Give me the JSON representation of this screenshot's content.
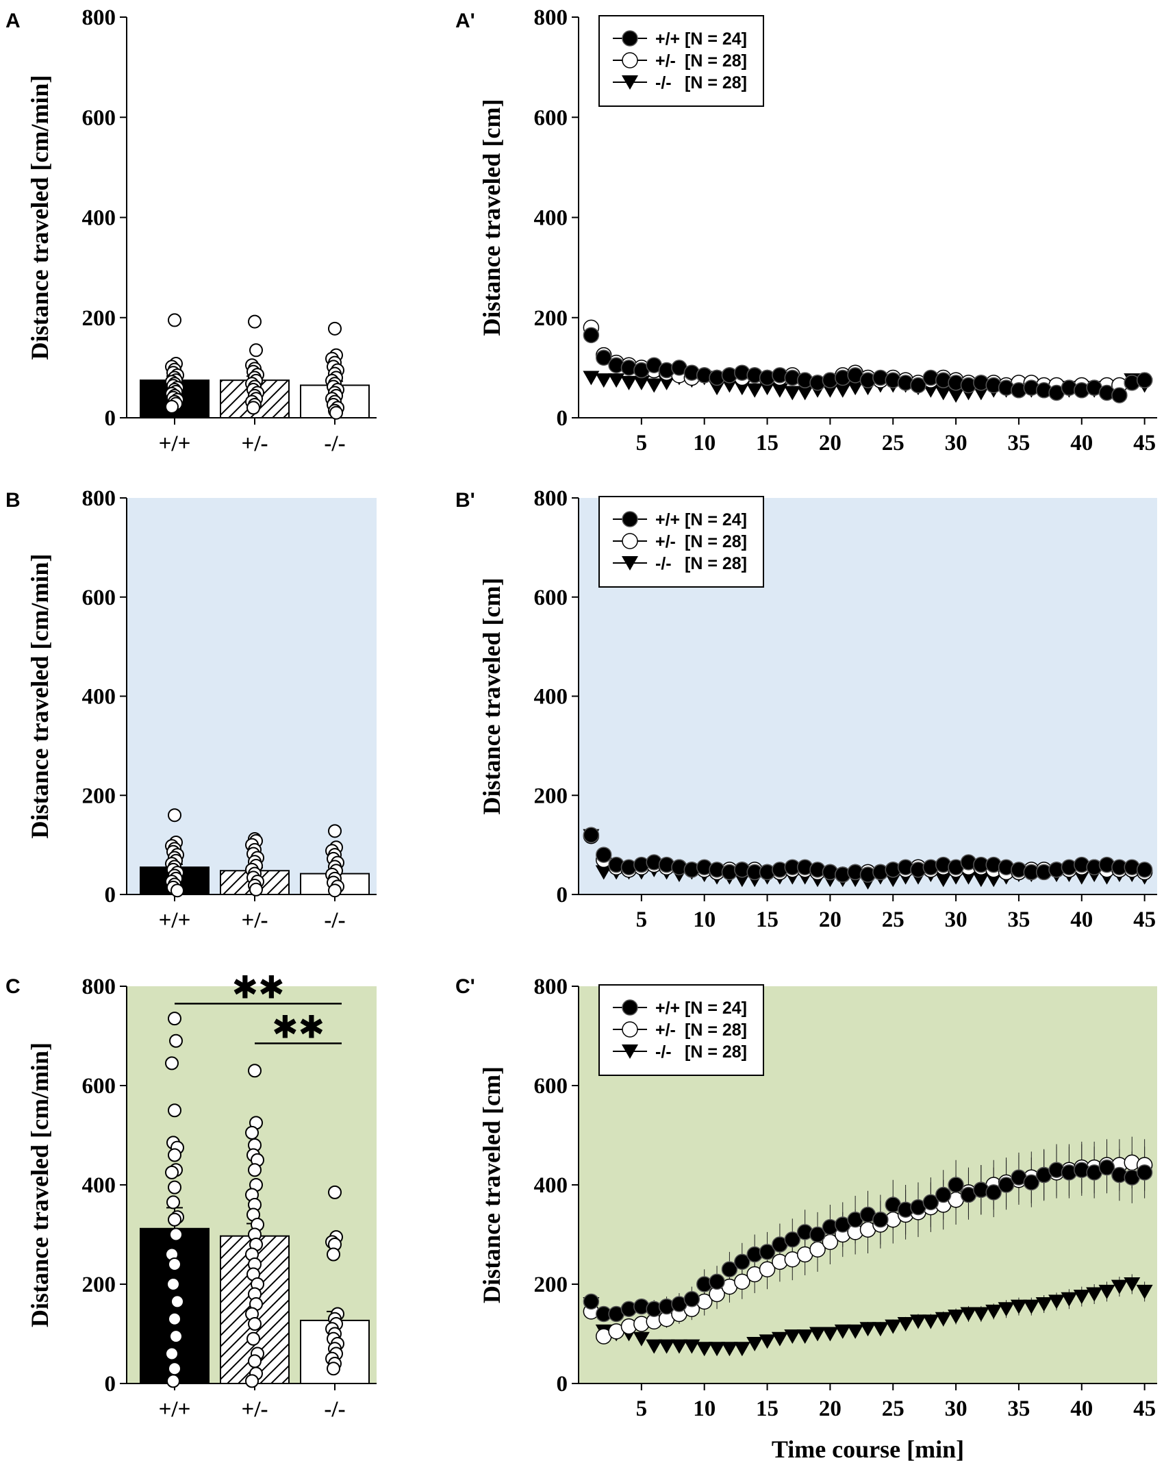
{
  "colors": {
    "bg_A": "#ffffff",
    "bg_B": "#dde9f5",
    "bg_C": "#d6e2bc",
    "ink": "#000000"
  },
  "chart_data": [
    {
      "panel": "A",
      "type": "bar",
      "title": "",
      "xlabel": "",
      "ylabel": "Distance traveled [cm/min]",
      "ylim": [
        0,
        800
      ],
      "yticks": [
        "0",
        "200",
        "400",
        "600",
        "800"
      ],
      "background": "bg_A",
      "categories": [
        "+/+",
        "+/-",
        "-/-"
      ],
      "fills": [
        "black",
        "hatch",
        "white"
      ],
      "values": [
        75,
        75,
        65
      ],
      "errors": [
        8,
        8,
        8
      ],
      "points": [
        [
          195,
          108,
          102,
          96,
          90,
          85,
          80,
          75,
          72,
          68,
          64,
          60,
          56,
          52,
          48,
          44,
          40,
          36,
          32,
          28,
          22
        ],
        [
          192,
          135,
          105,
          98,
          92,
          86,
          80,
          74,
          68,
          62,
          56,
          50,
          44,
          38,
          32,
          26,
          20
        ],
        [
          178,
          125,
          118,
          110,
          102,
          95,
          88,
          80,
          74,
          68,
          62,
          56,
          50,
          44,
          38,
          32,
          26,
          20,
          14,
          10
        ]
      ],
      "significance": []
    },
    {
      "panel": "A'",
      "type": "line",
      "title": "",
      "xlabel": "",
      "ylabel": "Distance traveled [cm]",
      "xlim": [
        0,
        46
      ],
      "ylim": [
        0,
        800
      ],
      "xticks": [
        "5",
        "10",
        "15",
        "20",
        "25",
        "30",
        "35",
        "40",
        "45"
      ],
      "yticks": [
        "0",
        "200",
        "400",
        "600",
        "800"
      ],
      "background": "bg_A",
      "errorbars": false,
      "series": [
        {
          "name": "+/+",
          "n_label": "[N = 24]",
          "marker": "filled-circle",
          "values": [
            165,
            120,
            105,
            100,
            95,
            105,
            95,
            100,
            90,
            85,
            80,
            85,
            90,
            85,
            80,
            85,
            80,
            75,
            70,
            75,
            80,
            85,
            75,
            80,
            75,
            70,
            65,
            80,
            75,
            70,
            65,
            70,
            65,
            60,
            55,
            60,
            55,
            50,
            60,
            55,
            60,
            50,
            45,
            70,
            75
          ]
        },
        {
          "name": "+/-",
          "n_label": "[N = 28]",
          "marker": "open-circle",
          "values": [
            180,
            125,
            110,
            105,
            100,
            95,
            90,
            85,
            80,
            85,
            80,
            85,
            80,
            85,
            80,
            80,
            85,
            75,
            70,
            75,
            85,
            90,
            80,
            75,
            80,
            75,
            70,
            75,
            80,
            75,
            70,
            70,
            70,
            65,
            70,
            70,
            65,
            65,
            60,
            65,
            60,
            65,
            65,
            70,
            75
          ]
        },
        {
          "name": "-/-",
          "n_label": "[N = 28]",
          "marker": "triangle-down",
          "values": [
            80,
            75,
            75,
            70,
            70,
            65,
            70,
            80,
            75,
            80,
            60,
            65,
            60,
            55,
            60,
            55,
            50,
            50,
            55,
            55,
            55,
            60,
            60,
            65,
            65,
            65,
            60,
            55,
            50,
            45,
            50,
            50,
            55,
            55,
            55,
            55,
            60,
            60,
            55,
            60,
            55,
            60,
            55,
            75,
            65
          ]
        }
      ]
    },
    {
      "panel": "B",
      "type": "bar",
      "title": "",
      "xlabel": "",
      "ylabel": "Distance traveled [cm/min]",
      "ylim": [
        0,
        800
      ],
      "yticks": [
        "0",
        "200",
        "400",
        "600",
        "800"
      ],
      "background": "bg_B",
      "categories": [
        "+/+",
        "+/-",
        "-/-"
      ],
      "fills": [
        "black",
        "hatch",
        "white"
      ],
      "values": [
        55,
        48,
        42
      ],
      "errors": [
        6,
        6,
        6
      ],
      "points": [
        [
          160,
          105,
          98,
          92,
          86,
          80,
          74,
          68,
          62,
          56,
          50,
          44,
          38,
          32,
          26,
          20,
          14,
          8
        ],
        [
          112,
          108,
          100,
          90,
          82,
          74,
          66,
          58,
          50,
          42,
          34,
          26,
          18,
          10
        ],
        [
          128,
          95,
          88,
          80,
          72,
          64,
          56,
          48,
          40,
          32,
          24,
          16,
          8
        ]
      ],
      "significance": []
    },
    {
      "panel": "B'",
      "type": "line",
      "title": "",
      "xlabel": "",
      "ylabel": "Distance traveled [cm]",
      "xlim": [
        0,
        46
      ],
      "ylim": [
        0,
        800
      ],
      "xticks": [
        "5",
        "10",
        "15",
        "20",
        "25",
        "30",
        "35",
        "40",
        "45"
      ],
      "yticks": [
        "0",
        "200",
        "400",
        "600",
        "800"
      ],
      "background": "bg_B",
      "errorbars": false,
      "series": [
        {
          "name": "+/+",
          "n_label": "[N = 24]",
          "marker": "filled-circle",
          "values": [
            120,
            80,
            60,
            55,
            60,
            65,
            60,
            55,
            50,
            55,
            50,
            45,
            50,
            45,
            45,
            50,
            55,
            55,
            50,
            45,
            40,
            45,
            40,
            45,
            50,
            55,
            50,
            55,
            60,
            55,
            65,
            60,
            60,
            55,
            50,
            45,
            45,
            50,
            55,
            60,
            55,
            60,
            55,
            55,
            50
          ]
        },
        {
          "name": "+/-",
          "n_label": "[N = 28]",
          "marker": "open-circle",
          "values": [
            118,
            70,
            55,
            50,
            55,
            60,
            55,
            55,
            50,
            50,
            45,
            50,
            50,
            50,
            45,
            45,
            50,
            50,
            45,
            45,
            40,
            45,
            45,
            45,
            50,
            50,
            55,
            50,
            55,
            50,
            55,
            55,
            50,
            45,
            45,
            50,
            50,
            50,
            50,
            55,
            55,
            50,
            50,
            50,
            45
          ]
        },
        {
          "name": "-/-",
          "n_label": "[N = 28]",
          "marker": "triangle-down",
          "values": [
            118,
            45,
            45,
            45,
            45,
            50,
            45,
            40,
            45,
            40,
            35,
            35,
            30,
            30,
            35,
            35,
            35,
            35,
            30,
            30,
            30,
            30,
            25,
            35,
            30,
            35,
            35,
            40,
            30,
            35,
            35,
            30,
            30,
            35,
            40,
            40,
            45,
            40,
            40,
            35,
            40,
            35,
            40,
            40,
            35
          ]
        }
      ]
    },
    {
      "panel": "C",
      "type": "bar",
      "title": "",
      "xlabel": "",
      "ylabel": "Distance traveled [cm/min]",
      "ylim": [
        0,
        800
      ],
      "yticks": [
        "0",
        "200",
        "400",
        "600",
        "800"
      ],
      "background": "bg_C",
      "categories": [
        "+/+",
        "+/-",
        "-/-"
      ],
      "fills": [
        "black",
        "hatch",
        "white"
      ],
      "values": [
        312,
        297,
        127
      ],
      "errors": [
        42,
        25,
        18
      ],
      "points": [
        [
          735,
          690,
          645,
          550,
          485,
          475,
          460,
          430,
          425,
          395,
          365,
          335,
          330,
          300,
          260,
          240,
          200,
          165,
          130,
          95,
          60,
          30,
          5
        ],
        [
          630,
          525,
          505,
          480,
          460,
          450,
          430,
          400,
          380,
          360,
          340,
          320,
          300,
          280,
          260,
          240,
          220,
          200,
          180,
          160,
          140,
          120,
          90,
          60,
          45,
          20,
          5
        ],
        [
          385,
          295,
          285,
          280,
          260,
          140,
          130,
          120,
          110,
          100,
          90,
          80,
          70,
          60,
          50,
          40,
          30
        ]
      ],
      "significance": [
        {
          "from": 0,
          "to": 2,
          "y": 765,
          "label": "**"
        },
        {
          "from": 1,
          "to": 2,
          "y": 685,
          "label": "**"
        }
      ]
    },
    {
      "panel": "C'",
      "type": "line",
      "title": "",
      "xlabel": "Time course [min]",
      "ylabel": "Distance traveled [cm]",
      "xlim": [
        0,
        46
      ],
      "ylim": [
        0,
        800
      ],
      "xticks": [
        "5",
        "10",
        "15",
        "20",
        "25",
        "30",
        "35",
        "40",
        "45"
      ],
      "yticks": [
        "0",
        "200",
        "400",
        "600",
        "800"
      ],
      "background": "bg_C",
      "errorbars": true,
      "series": [
        {
          "name": "+/+",
          "n_label": "[N = 24]",
          "marker": "filled-circle",
          "values": [
            165,
            140,
            140,
            150,
            155,
            150,
            155,
            160,
            170,
            200,
            205,
            230,
            245,
            260,
            265,
            280,
            290,
            305,
            300,
            315,
            320,
            330,
            340,
            330,
            360,
            350,
            355,
            365,
            380,
            400,
            380,
            390,
            385,
            400,
            415,
            405,
            420,
            430,
            425,
            430,
            425,
            435,
            420,
            415,
            425
          ],
          "errors": [
            15,
            15,
            15,
            15,
            15,
            18,
            20,
            22,
            25,
            30,
            32,
            35,
            38,
            40,
            40,
            42,
            42,
            45,
            45,
            45,
            45,
            48,
            48,
            50,
            50,
            50,
            50,
            50,
            50,
            50,
            50,
            50,
            50,
            50,
            50,
            50,
            50,
            52,
            52,
            52,
            52,
            52,
            52,
            52,
            52
          ]
        },
        {
          "name": "+/-",
          "n_label": "[N = 28]",
          "marker": "open-circle",
          "values": [
            145,
            95,
            105,
            115,
            120,
            125,
            130,
            140,
            150,
            165,
            180,
            195,
            205,
            220,
            230,
            245,
            250,
            260,
            270,
            285,
            300,
            305,
            310,
            320,
            330,
            340,
            345,
            355,
            360,
            370,
            385,
            390,
            400,
            405,
            410,
            415,
            420,
            425,
            430,
            435,
            435,
            440,
            440,
            445,
            440
          ],
          "errors": [
            12,
            12,
            12,
            12,
            12,
            15,
            18,
            20,
            22,
            28,
            30,
            32,
            35,
            38,
            40,
            40,
            42,
            42,
            45,
            45,
            45,
            45,
            48,
            48,
            48,
            50,
            50,
            50,
            50,
            50,
            50,
            50,
            50,
            50,
            50,
            52,
            52,
            52,
            52,
            52,
            52,
            52,
            52,
            52,
            52
          ]
        },
        {
          "name": "-/-",
          "n_label": "[N = 28]",
          "marker": "triangle-down",
          "values": [
            160,
            105,
            100,
            100,
            90,
            75,
            75,
            75,
            75,
            70,
            70,
            70,
            70,
            80,
            85,
            90,
            95,
            95,
            100,
            100,
            105,
            105,
            110,
            110,
            115,
            120,
            125,
            125,
            130,
            135,
            140,
            140,
            145,
            150,
            155,
            155,
            160,
            165,
            170,
            175,
            180,
            185,
            195,
            200,
            185
          ],
          "errors": [
            10,
            10,
            10,
            8,
            8,
            8,
            8,
            8,
            8,
            8,
            8,
            8,
            8,
            10,
            10,
            10,
            12,
            12,
            12,
            12,
            12,
            12,
            14,
            14,
            14,
            14,
            15,
            15,
            15,
            16,
            16,
            16,
            16,
            18,
            18,
            18,
            18,
            18,
            20,
            20,
            20,
            20,
            20,
            20,
            20
          ]
        }
      ]
    }
  ]
}
